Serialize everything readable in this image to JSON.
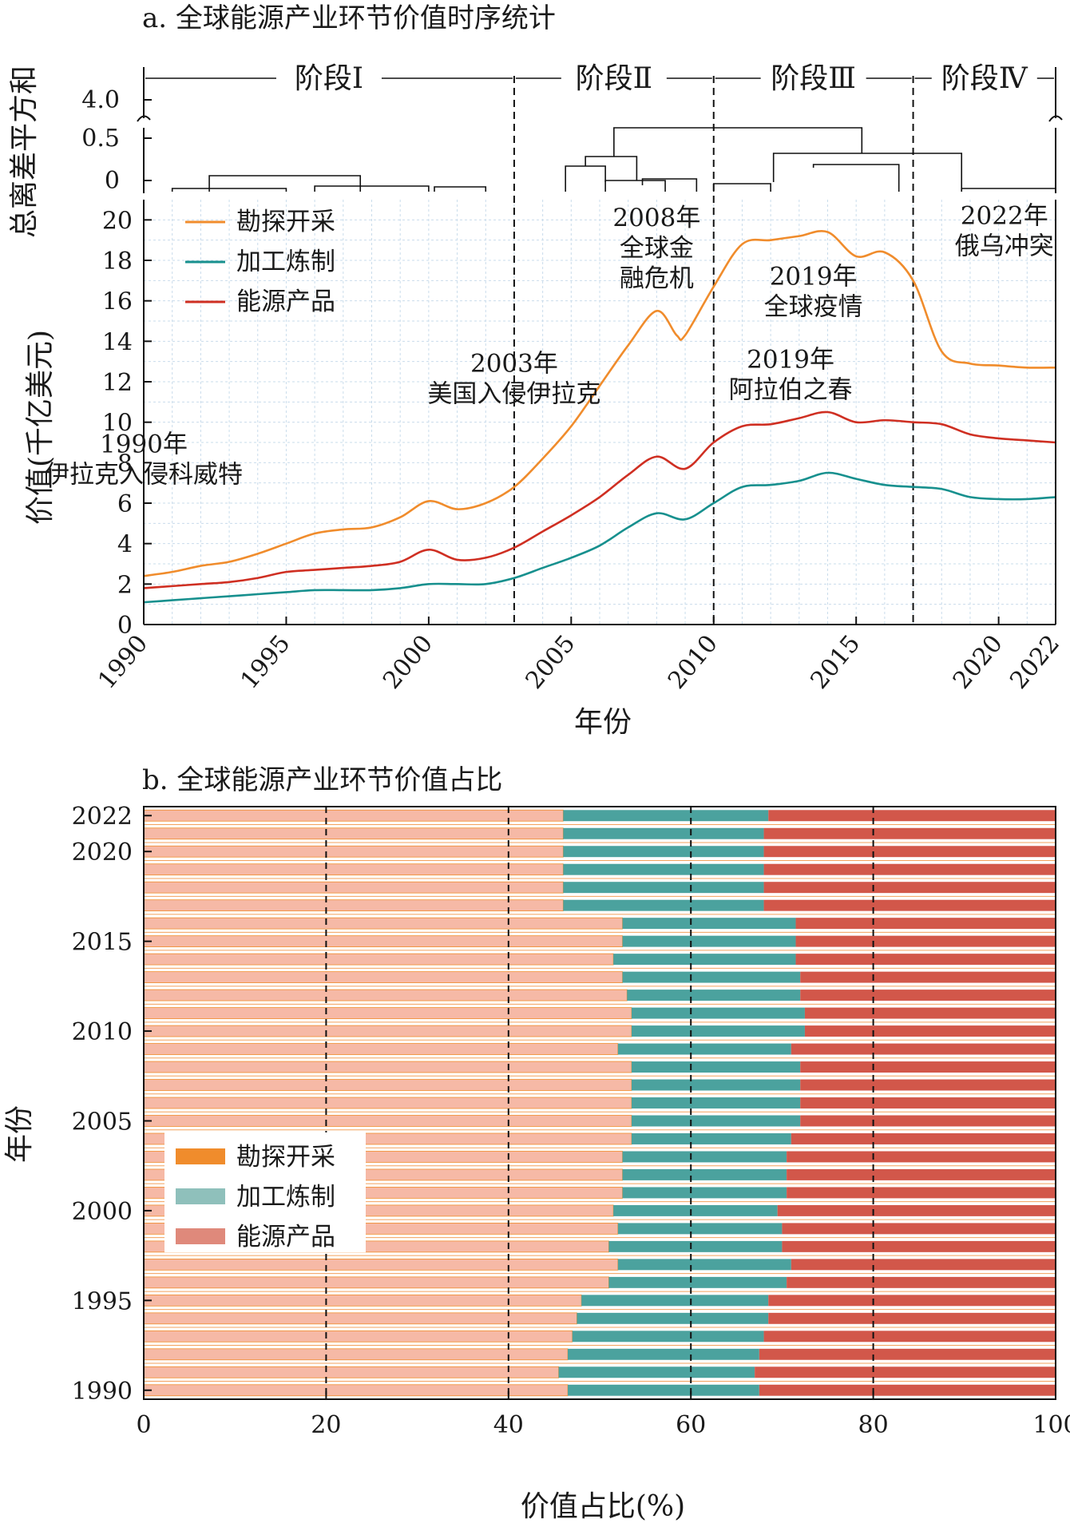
{
  "chart_data": [
    {
      "type": "line",
      "title": "a. 全球能源产业环节价值时序统计",
      "xlabel": "年份",
      "ylabel": "价值(千亿美元)",
      "xlim": [
        1990,
        2022
      ],
      "ylim": [
        0,
        21
      ],
      "x_ticks": [
        1990,
        1995,
        2000,
        2005,
        2010,
        2015,
        2020,
        2022
      ],
      "y_ticks": [
        0,
        2,
        4,
        6,
        8,
        10,
        12,
        14,
        16,
        18,
        20
      ],
      "grid": true,
      "legend_position": "top-left",
      "colors": {
        "勘探开采": "#f08c2c",
        "加工炼制": "#17908e",
        "能源产品": "#cf2f22"
      },
      "series": [
        {
          "name": "勘探开采",
          "points": [
            [
              1990,
              2.4
            ],
            [
              1991,
              2.6
            ],
            [
              1992,
              2.9
            ],
            [
              1993,
              3.1
            ],
            [
              1994,
              3.5
            ],
            [
              1995,
              4.0
            ],
            [
              1996,
              4.5
            ],
            [
              1997,
              4.7
            ],
            [
              1998,
              4.8
            ],
            [
              1999,
              5.3
            ],
            [
              2000,
              6.1
            ],
            [
              2001,
              5.7
            ],
            [
              2002,
              6.0
            ],
            [
              2003,
              6.8
            ],
            [
              2004,
              8.2
            ],
            [
              2005,
              9.8
            ],
            [
              2006,
              11.8
            ],
            [
              2007,
              13.8
            ],
            [
              2008,
              15.5
            ],
            [
              2008.7,
              14.3
            ],
            [
              2009,
              14.3
            ],
            [
              2010,
              16.7
            ],
            [
              2011,
              18.8
            ],
            [
              2012,
              19.0
            ],
            [
              2013,
              19.2
            ],
            [
              2014,
              19.4
            ],
            [
              2015,
              18.2
            ],
            [
              2016,
              18.4
            ],
            [
              2017,
              17.0
            ],
            [
              2018,
              13.5
            ],
            [
              2019,
              12.9
            ],
            [
              2020,
              12.8
            ],
            [
              2021,
              12.7
            ],
            [
              2022,
              12.7
            ]
          ]
        },
        {
          "name": "加工炼制",
          "points": [
            [
              1990,
              1.1
            ],
            [
              1991,
              1.2
            ],
            [
              1992,
              1.3
            ],
            [
              1993,
              1.4
            ],
            [
              1994,
              1.5
            ],
            [
              1995,
              1.6
            ],
            [
              1996,
              1.7
            ],
            [
              1997,
              1.7
            ],
            [
              1998,
              1.7
            ],
            [
              1999,
              1.8
            ],
            [
              2000,
              2.0
            ],
            [
              2001,
              2.0
            ],
            [
              2002,
              2.0
            ],
            [
              2003,
              2.3
            ],
            [
              2004,
              2.8
            ],
            [
              2005,
              3.3
            ],
            [
              2006,
              3.9
            ],
            [
              2007,
              4.8
            ],
            [
              2008,
              5.5
            ],
            [
              2009,
              5.2
            ],
            [
              2010,
              6.0
            ],
            [
              2011,
              6.8
            ],
            [
              2012,
              6.9
            ],
            [
              2013,
              7.1
            ],
            [
              2014,
              7.5
            ],
            [
              2015,
              7.2
            ],
            [
              2016,
              6.9
            ],
            [
              2017,
              6.8
            ],
            [
              2018,
              6.7
            ],
            [
              2019,
              6.3
            ],
            [
              2020,
              6.2
            ],
            [
              2021,
              6.2
            ],
            [
              2022,
              6.3
            ]
          ]
        },
        {
          "name": "能源产品",
          "points": [
            [
              1990,
              1.8
            ],
            [
              1991,
              1.9
            ],
            [
              1992,
              2.0
            ],
            [
              1993,
              2.1
            ],
            [
              1994,
              2.3
            ],
            [
              1995,
              2.6
            ],
            [
              1996,
              2.7
            ],
            [
              1997,
              2.8
            ],
            [
              1998,
              2.9
            ],
            [
              1999,
              3.1
            ],
            [
              2000,
              3.7
            ],
            [
              2001,
              3.2
            ],
            [
              2002,
              3.3
            ],
            [
              2003,
              3.8
            ],
            [
              2004,
              4.6
            ],
            [
              2005,
              5.4
            ],
            [
              2006,
              6.3
            ],
            [
              2007,
              7.4
            ],
            [
              2008,
              8.3
            ],
            [
              2009,
              7.7
            ],
            [
              2010,
              9.0
            ],
            [
              2011,
              9.8
            ],
            [
              2012,
              9.9
            ],
            [
              2013,
              10.2
            ],
            [
              2014,
              10.5
            ],
            [
              2015,
              10.0
            ],
            [
              2016,
              10.1
            ],
            [
              2017,
              10.0
            ],
            [
              2018,
              9.9
            ],
            [
              2019,
              9.4
            ],
            [
              2020,
              9.2
            ],
            [
              2021,
              9.1
            ],
            [
              2022,
              9.0
            ]
          ]
        }
      ],
      "annotations": [
        {
          "year": 1990,
          "value": 8.5,
          "lines": [
            "1990年",
            "伊拉克入侵科威特"
          ]
        },
        {
          "year": 2003,
          "value": 12.5,
          "lines": [
            "2003年",
            "美国入侵伊拉克"
          ]
        },
        {
          "year": 2008,
          "value": 19.7,
          "lines": [
            "2008年",
            "全球金",
            "融危机"
          ]
        },
        {
          "year": 2013.5,
          "value": 16.8,
          "lines": [
            "2019年",
            "全球疫情"
          ]
        },
        {
          "year": 2012.7,
          "value": 12.7,
          "lines": [
            "2019年",
            "阿拉伯之春"
          ]
        },
        {
          "year": 2020.2,
          "value": 19.8,
          "lines": [
            "2022年",
            "俄乌冲突"
          ]
        }
      ],
      "stage_dividers": [
        2003,
        2010,
        2017
      ],
      "stages": [
        "阶段Ⅰ",
        "阶段Ⅱ",
        "阶段Ⅲ",
        "阶段Ⅳ"
      ],
      "dendrogram": {
        "ylabel": "总离差平方和",
        "tick_labels": [
          "4.0",
          "0.5",
          "0"
        ]
      }
    },
    {
      "type": "bar",
      "orientation": "horizontal",
      "stacked": true,
      "title": "b. 全球能源产业环节价值占比",
      "xlabel": "价值占比(%)",
      "ylabel": "年份",
      "xlim": [
        0,
        100
      ],
      "x_ticks": [
        0,
        20,
        40,
        60,
        80,
        100
      ],
      "y_ticks": [
        1990,
        1995,
        2000,
        2005,
        2010,
        2015,
        2020,
        2022
      ],
      "legend_position": "left",
      "categories": [
        1990,
        1991,
        1992,
        1993,
        1994,
        1995,
        1996,
        1997,
        1998,
        1999,
        2000,
        2001,
        2002,
        2003,
        2004,
        2005,
        2006,
        2007,
        2008,
        2009,
        2010,
        2011,
        2012,
        2013,
        2014,
        2015,
        2016,
        2017,
        2018,
        2019,
        2020,
        2021,
        2022
      ],
      "series": [
        {
          "name": "勘探开采",
          "color": "#f6b9a6",
          "values": [
            46.5,
            45.5,
            46.5,
            47.0,
            47.5,
            48.0,
            51.0,
            52.0,
            51.0,
            52.0,
            51.5,
            52.5,
            52.5,
            52.5,
            53.5,
            53.5,
            53.5,
            53.5,
            53.5,
            52.0,
            53.5,
            53.5,
            53.0,
            52.5,
            51.5,
            52.5,
            52.5,
            46.0,
            46.0,
            46.0,
            46.0,
            46.0,
            46.0
          ]
        },
        {
          "name": "加工炼制",
          "color": "#7fb8b4",
          "values": [
            21.0,
            21.5,
            21.0,
            21.0,
            21.0,
            20.5,
            19.5,
            19.0,
            19.0,
            18.0,
            18.0,
            18.0,
            18.0,
            18.0,
            17.5,
            18.5,
            18.5,
            18.5,
            18.5,
            19.0,
            19.0,
            19.0,
            19.0,
            19.5,
            20.0,
            19.0,
            19.0,
            22.0,
            22.0,
            22.0,
            22.0,
            22.0,
            22.5
          ]
        },
        {
          "name": "能源产品",
          "color": "#df897b",
          "values": [
            32.5,
            33.0,
            32.5,
            32.0,
            31.5,
            31.5,
            29.5,
            29.0,
            30.0,
            30.0,
            30.5,
            29.5,
            29.5,
            29.5,
            29.0,
            28.0,
            28.0,
            28.0,
            28.0,
            29.0,
            27.5,
            27.5,
            28.0,
            28.0,
            28.5,
            28.5,
            28.5,
            32.0,
            32.0,
            32.0,
            32.0,
            32.0,
            31.5
          ]
        }
      ]
    }
  ]
}
